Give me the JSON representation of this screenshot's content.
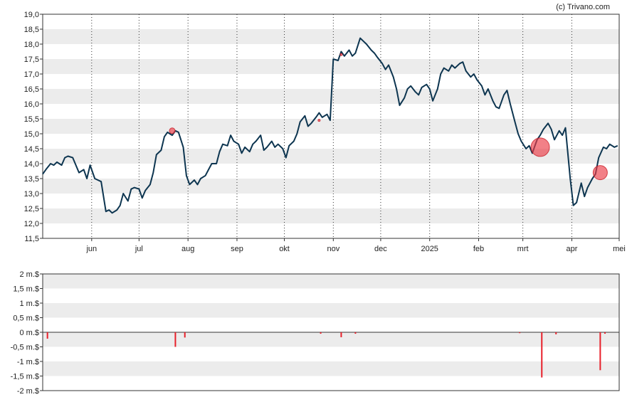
{
  "credit": "(c) Trivano.com",
  "chart_data": [
    {
      "type": "line",
      "ylim": [
        11.5,
        19.0
      ],
      "y_ticks": [
        11.5,
        12.0,
        12.5,
        13.0,
        13.5,
        14.0,
        14.5,
        15.0,
        15.5,
        16.0,
        16.5,
        17.0,
        17.5,
        18.0,
        18.5,
        19.0
      ],
      "y_tick_labels": [
        "11,5",
        "12,0",
        "12,5",
        "13,0",
        "13,5",
        "14,0",
        "14,5",
        "15,0",
        "15,5",
        "16,0",
        "16,5",
        "17,0",
        "17,5",
        "18,0",
        "18,5",
        "19,0"
      ],
      "x_domain": [
        "2024-05-01",
        "2025-05-01"
      ],
      "x_ticks": [
        {
          "label": "jun",
          "date": "2024-06-01"
        },
        {
          "label": "jul",
          "date": "2024-07-01"
        },
        {
          "label": "aug",
          "date": "2024-08-01"
        },
        {
          "label": "sep",
          "date": "2024-09-01"
        },
        {
          "label": "okt",
          "date": "2024-10-01"
        },
        {
          "label": "nov",
          "date": "2024-11-01"
        },
        {
          "label": "dec",
          "date": "2024-12-01"
        },
        {
          "label": "2025",
          "date": "2025-01-01"
        },
        {
          "label": "feb",
          "date": "2025-02-01"
        },
        {
          "label": "mrt",
          "date": "2025-03-01"
        },
        {
          "label": "apr",
          "date": "2025-04-01"
        },
        {
          "label": "mei",
          "date": "2025-05-01"
        }
      ],
      "grid": true,
      "series": [
        {
          "color": "#0d3550",
          "points": [
            [
              "2024-05-01",
              13.65
            ],
            [
              "2024-05-03",
              13.8
            ],
            [
              "2024-05-06",
              14.0
            ],
            [
              "2024-05-08",
              13.95
            ],
            [
              "2024-05-10",
              14.05
            ],
            [
              "2024-05-13",
              13.95
            ],
            [
              "2024-05-15",
              14.2
            ],
            [
              "2024-05-17",
              14.25
            ],
            [
              "2024-05-20",
              14.2
            ],
            [
              "2024-05-22",
              13.95
            ],
            [
              "2024-05-24",
              13.7
            ],
            [
              "2024-05-27",
              13.8
            ],
            [
              "2024-05-29",
              13.5
            ],
            [
              "2024-05-31",
              13.95
            ],
            [
              "2024-06-03",
              13.5
            ],
            [
              "2024-06-05",
              13.45
            ],
            [
              "2024-06-07",
              13.4
            ],
            [
              "2024-06-10",
              12.4
            ],
            [
              "2024-06-12",
              12.45
            ],
            [
              "2024-06-14",
              12.35
            ],
            [
              "2024-06-17",
              12.45
            ],
            [
              "2024-06-19",
              12.6
            ],
            [
              "2024-06-21",
              13.0
            ],
            [
              "2024-06-24",
              12.75
            ],
            [
              "2024-06-26",
              13.15
            ],
            [
              "2024-06-28",
              13.2
            ],
            [
              "2024-07-01",
              13.15
            ],
            [
              "2024-07-03",
              12.85
            ],
            [
              "2024-07-05",
              13.1
            ],
            [
              "2024-07-08",
              13.3
            ],
            [
              "2024-07-10",
              13.7
            ],
            [
              "2024-07-12",
              14.3
            ],
            [
              "2024-07-15",
              14.45
            ],
            [
              "2024-07-17",
              14.9
            ],
            [
              "2024-07-19",
              15.05
            ],
            [
              "2024-07-22",
              14.95
            ],
            [
              "2024-07-24",
              15.1
            ],
            [
              "2024-07-26",
              15.05
            ],
            [
              "2024-07-29",
              14.55
            ],
            [
              "2024-07-31",
              13.6
            ],
            [
              "2024-08-02",
              13.3
            ],
            [
              "2024-08-05",
              13.45
            ],
            [
              "2024-08-07",
              13.3
            ],
            [
              "2024-08-09",
              13.5
            ],
            [
              "2024-08-12",
              13.6
            ],
            [
              "2024-08-14",
              13.8
            ],
            [
              "2024-08-16",
              14.0
            ],
            [
              "2024-08-19",
              14.0
            ],
            [
              "2024-08-21",
              14.4
            ],
            [
              "2024-08-23",
              14.65
            ],
            [
              "2024-08-26",
              14.6
            ],
            [
              "2024-08-28",
              14.95
            ],
            [
              "2024-08-30",
              14.75
            ],
            [
              "2024-09-02",
              14.65
            ],
            [
              "2024-09-04",
              14.35
            ],
            [
              "2024-09-06",
              14.55
            ],
            [
              "2024-09-09",
              14.4
            ],
            [
              "2024-09-11",
              14.65
            ],
            [
              "2024-09-13",
              14.75
            ],
            [
              "2024-09-16",
              14.95
            ],
            [
              "2024-09-18",
              14.45
            ],
            [
              "2024-09-20",
              14.55
            ],
            [
              "2024-09-23",
              14.75
            ],
            [
              "2024-09-25",
              14.55
            ],
            [
              "2024-09-27",
              14.65
            ],
            [
              "2024-09-30",
              14.5
            ],
            [
              "2024-10-02",
              14.2
            ],
            [
              "2024-10-04",
              14.6
            ],
            [
              "2024-10-07",
              14.75
            ],
            [
              "2024-10-09",
              15.0
            ],
            [
              "2024-10-11",
              15.4
            ],
            [
              "2024-10-14",
              15.6
            ],
            [
              "2024-10-16",
              15.25
            ],
            [
              "2024-10-18",
              15.35
            ],
            [
              "2024-10-21",
              15.55
            ],
            [
              "2024-10-23",
              15.7
            ],
            [
              "2024-10-25",
              15.55
            ],
            [
              "2024-10-28",
              15.65
            ],
            [
              "2024-10-30",
              15.45
            ],
            [
              "2024-11-01",
              17.5
            ],
            [
              "2024-11-04",
              17.45
            ],
            [
              "2024-11-06",
              17.75
            ],
            [
              "2024-11-08",
              17.6
            ],
            [
              "2024-11-11",
              17.8
            ],
            [
              "2024-11-13",
              17.6
            ],
            [
              "2024-11-15",
              17.7
            ],
            [
              "2024-11-18",
              18.2
            ],
            [
              "2024-11-20",
              18.1
            ],
            [
              "2024-11-22",
              18.0
            ],
            [
              "2024-11-25",
              17.8
            ],
            [
              "2024-11-27",
              17.7
            ],
            [
              "2024-11-29",
              17.55
            ],
            [
              "2024-12-02",
              17.35
            ],
            [
              "2024-12-04",
              17.15
            ],
            [
              "2024-12-06",
              17.3
            ],
            [
              "2024-12-09",
              16.9
            ],
            [
              "2024-12-11",
              16.5
            ],
            [
              "2024-12-13",
              15.95
            ],
            [
              "2024-12-16",
              16.2
            ],
            [
              "2024-12-18",
              16.5
            ],
            [
              "2024-12-20",
              16.6
            ],
            [
              "2024-12-23",
              16.4
            ],
            [
              "2024-12-25",
              16.3
            ],
            [
              "2024-12-27",
              16.55
            ],
            [
              "2024-12-30",
              16.65
            ],
            [
              "2025-01-01",
              16.5
            ],
            [
              "2025-01-03",
              16.1
            ],
            [
              "2025-01-06",
              16.5
            ],
            [
              "2025-01-08",
              17.0
            ],
            [
              "2025-01-10",
              17.2
            ],
            [
              "2025-01-13",
              17.1
            ],
            [
              "2025-01-15",
              17.3
            ],
            [
              "2025-01-17",
              17.2
            ],
            [
              "2025-01-20",
              17.35
            ],
            [
              "2025-01-22",
              17.4
            ],
            [
              "2025-01-24",
              17.1
            ],
            [
              "2025-01-27",
              16.9
            ],
            [
              "2025-01-29",
              17.0
            ],
            [
              "2025-01-31",
              16.8
            ],
            [
              "2025-02-03",
              16.6
            ],
            [
              "2025-02-05",
              16.3
            ],
            [
              "2025-02-07",
              16.5
            ],
            [
              "2025-02-10",
              16.1
            ],
            [
              "2025-02-12",
              15.9
            ],
            [
              "2025-02-14",
              15.85
            ],
            [
              "2025-02-17",
              16.3
            ],
            [
              "2025-02-19",
              16.45
            ],
            [
              "2025-02-21",
              16.0
            ],
            [
              "2025-02-24",
              15.4
            ],
            [
              "2025-02-26",
              15.0
            ],
            [
              "2025-02-28",
              14.75
            ],
            [
              "2025-03-03",
              14.5
            ],
            [
              "2025-03-05",
              14.6
            ],
            [
              "2025-03-07",
              14.35
            ],
            [
              "2025-03-10",
              14.8
            ],
            [
              "2025-03-12",
              14.95
            ],
            [
              "2025-03-14",
              15.15
            ],
            [
              "2025-03-17",
              15.35
            ],
            [
              "2025-03-19",
              15.15
            ],
            [
              "2025-03-21",
              14.8
            ],
            [
              "2025-03-24",
              15.1
            ],
            [
              "2025-03-26",
              14.95
            ],
            [
              "2025-03-28",
              15.2
            ],
            [
              "2025-03-31",
              13.5
            ],
            [
              "2025-04-02",
              12.6
            ],
            [
              "2025-04-04",
              12.7
            ],
            [
              "2025-04-07",
              13.35
            ],
            [
              "2025-04-09",
              12.9
            ],
            [
              "2025-04-11",
              13.2
            ],
            [
              "2025-04-14",
              13.5
            ],
            [
              "2025-04-16",
              13.65
            ],
            [
              "2025-04-18",
              14.2
            ],
            [
              "2025-04-21",
              14.55
            ],
            [
              "2025-04-23",
              14.5
            ],
            [
              "2025-04-25",
              14.65
            ],
            [
              "2025-04-28",
              14.55
            ],
            [
              "2025-04-30",
              14.6
            ]
          ]
        }
      ],
      "markers": [
        {
          "date": "2024-07-22",
          "value": 15.1,
          "scale": "small"
        },
        {
          "date": "2024-10-23",
          "value": 15.45,
          "scale": "tiny"
        },
        {
          "date": "2024-11-06",
          "value": 17.65,
          "scale": "tiny"
        },
        {
          "date": "2025-03-12",
          "value": 14.55,
          "scale": "large"
        },
        {
          "date": "2025-04-19",
          "value": 13.7,
          "scale": "medium"
        }
      ]
    },
    {
      "type": "bar",
      "ylim": [
        -2,
        2
      ],
      "y_ticks": [
        -2,
        -1.5,
        -1,
        -0.5,
        0,
        0.5,
        1,
        1.5,
        2
      ],
      "y_tick_labels": [
        "-2 m.$",
        "-1,5 m.$",
        "-1 m.$",
        "-0,5 m.$",
        "0 m.$",
        "0,5 m.$",
        "1 m.$",
        "1,5 m.$",
        "2 m.$"
      ],
      "x_domain": [
        "2024-05-01",
        "2025-05-01"
      ],
      "grid": true,
      "series": [
        {
          "color": "#e8202a",
          "points": [
            [
              "2024-05-04",
              -0.22
            ],
            [
              "2024-07-24",
              -0.5
            ],
            [
              "2024-07-30",
              -0.18
            ],
            [
              "2024-10-24",
              -0.05
            ],
            [
              "2024-11-06",
              -0.17
            ],
            [
              "2024-11-15",
              -0.05
            ],
            [
              "2025-02-27",
              -0.03
            ],
            [
              "2025-03-13",
              -1.55
            ],
            [
              "2025-03-22",
              -0.07
            ],
            [
              "2025-04-19",
              -1.3
            ],
            [
              "2025-04-22",
              -0.05
            ]
          ]
        }
      ]
    }
  ]
}
